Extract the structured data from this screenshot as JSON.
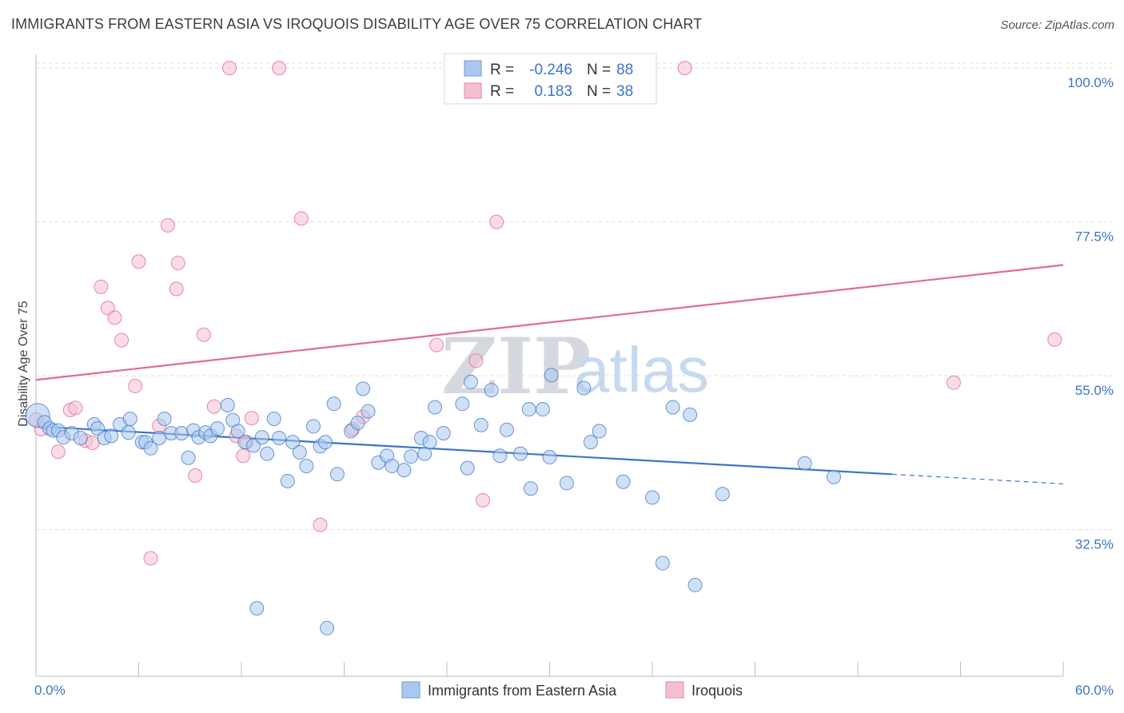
{
  "title": "IMMIGRANTS FROM EASTERN ASIA VS IROQUOIS DISABILITY AGE OVER 75 CORRELATION CHART",
  "source": "Source: ZipAtlas.com",
  "watermark": {
    "zip": "ZIP",
    "atlas": "atlas"
  },
  "colors": {
    "blue": "#3b74c9",
    "blue_fill": "#aac8ee",
    "pink": "#e26b93",
    "pink_fill": "#f5bfd2"
  },
  "legend": {
    "blue": {
      "r_label": "R =",
      "r_value": "-0.246",
      "n_label": "N =",
      "n_value": "88"
    },
    "pink": {
      "r_label": "R =",
      "r_value": "0.183",
      "n_label": "N =",
      "n_value": "38"
    }
  },
  "chart_data": {
    "type": "scatter",
    "title": "IMMIGRANTS FROM EASTERN ASIA VS IROQUOIS DISABILITY AGE OVER 75 CORRELATION CHART",
    "xlabel": "",
    "ylabel": "Disability Age Over 75",
    "xlim": [
      0,
      60
    ],
    "ylim": [
      12,
      102
    ],
    "x_tick_labels": [
      "0.0%",
      "60.0%"
    ],
    "y_ticks": [
      32.5,
      55.0,
      77.5,
      100.0
    ],
    "y_tick_labels": [
      "32.5%",
      "55.0%",
      "77.5%",
      "100.0%"
    ],
    "series": [
      {
        "name": "Immigrants from Eastern Asia",
        "color": "#3b74c9",
        "trend": {
          "x0": 0,
          "y0": 47.6,
          "x1": 50,
          "y1": 40.6,
          "dashed_to_x": 60,
          "dashed_to_y": 39.2
        },
        "points": [
          [
            0.1,
            49.2
          ],
          [
            0.5,
            48.2
          ],
          [
            0.8,
            47.3
          ],
          [
            1.0,
            47.0
          ],
          [
            1.3,
            47.0
          ],
          [
            1.6,
            46.0
          ],
          [
            2.1,
            46.6
          ],
          [
            2.6,
            45.9
          ],
          [
            3.4,
            47.9
          ],
          [
            3.6,
            47.3
          ],
          [
            4.0,
            45.9
          ],
          [
            4.4,
            46.2
          ],
          [
            4.9,
            47.9
          ],
          [
            5.4,
            46.7
          ],
          [
            5.5,
            48.7
          ],
          [
            6.2,
            45.3
          ],
          [
            6.4,
            45.3
          ],
          [
            6.7,
            44.4
          ],
          [
            7.2,
            45.9
          ],
          [
            7.5,
            48.7
          ],
          [
            7.9,
            46.6
          ],
          [
            8.5,
            46.6
          ],
          [
            8.9,
            43.0
          ],
          [
            9.2,
            47.0
          ],
          [
            9.5,
            46.0
          ],
          [
            9.9,
            46.7
          ],
          [
            10.2,
            46.2
          ],
          [
            10.6,
            47.3
          ],
          [
            11.2,
            50.7
          ],
          [
            11.5,
            48.5
          ],
          [
            11.8,
            46.9
          ],
          [
            12.2,
            45.3
          ],
          [
            12.7,
            44.8
          ],
          [
            13.2,
            46.0
          ],
          [
            13.5,
            43.6
          ],
          [
            13.9,
            48.7
          ],
          [
            14.2,
            45.9
          ],
          [
            14.7,
            39.6
          ],
          [
            15.0,
            45.3
          ],
          [
            15.4,
            43.8
          ],
          [
            15.8,
            41.8
          ],
          [
            16.2,
            47.6
          ],
          [
            16.6,
            44.7
          ],
          [
            16.9,
            45.3
          ],
          [
            17.4,
            50.9
          ],
          [
            17.6,
            40.6
          ],
          [
            18.4,
            46.9
          ],
          [
            18.8,
            48.1
          ],
          [
            19.1,
            53.1
          ],
          [
            19.4,
            49.8
          ],
          [
            20.0,
            42.3
          ],
          [
            20.5,
            43.3
          ],
          [
            20.8,
            41.8
          ],
          [
            21.5,
            41.2
          ],
          [
            21.9,
            43.2
          ],
          [
            22.5,
            45.9
          ],
          [
            22.7,
            43.6
          ],
          [
            23.0,
            45.3
          ],
          [
            23.3,
            50.4
          ],
          [
            23.8,
            46.6
          ],
          [
            24.9,
            50.9
          ],
          [
            25.2,
            41.5
          ],
          [
            25.4,
            54.1
          ],
          [
            26.0,
            47.8
          ],
          [
            26.6,
            52.9
          ],
          [
            27.1,
            43.3
          ],
          [
            27.5,
            47.1
          ],
          [
            28.3,
            43.6
          ],
          [
            28.8,
            50.1
          ],
          [
            28.9,
            38.5
          ],
          [
            29.6,
            50.1
          ],
          [
            30.0,
            43.1
          ],
          [
            30.1,
            55.1
          ],
          [
            31.0,
            39.3
          ],
          [
            32.0,
            53.2
          ],
          [
            32.4,
            45.3
          ],
          [
            32.9,
            46.9
          ],
          [
            34.3,
            39.5
          ],
          [
            36.0,
            37.2
          ],
          [
            36.6,
            27.6
          ],
          [
            37.2,
            50.4
          ],
          [
            38.2,
            49.3
          ],
          [
            38.5,
            24.4
          ],
          [
            40.1,
            37.7
          ],
          [
            44.9,
            42.2
          ],
          [
            46.6,
            40.2
          ],
          [
            17.0,
            18.1
          ],
          [
            12.9,
            21.0
          ]
        ]
      },
      {
        "name": "Iroquois",
        "color": "#e26b93",
        "trend": {
          "x0": 0,
          "y0": 54.4,
          "x1": 60,
          "y1": 71.2
        },
        "points": [
          [
            0.0,
            48.6
          ],
          [
            0.3,
            47.2
          ],
          [
            1.3,
            43.9
          ],
          [
            2.0,
            50.0
          ],
          [
            2.3,
            50.3
          ],
          [
            2.9,
            45.5
          ],
          [
            3.3,
            45.2
          ],
          [
            3.8,
            68.0
          ],
          [
            4.2,
            64.9
          ],
          [
            4.6,
            63.5
          ],
          [
            5.0,
            60.2
          ],
          [
            5.8,
            53.5
          ],
          [
            6.0,
            71.7
          ],
          [
            6.7,
            28.3
          ],
          [
            7.2,
            47.7
          ],
          [
            7.7,
            77.0
          ],
          [
            8.3,
            71.5
          ],
          [
            8.2,
            67.7
          ],
          [
            9.3,
            40.4
          ],
          [
            9.8,
            61.0
          ],
          [
            10.4,
            50.5
          ],
          [
            11.3,
            100.0
          ],
          [
            11.7,
            46.2
          ],
          [
            12.1,
            43.3
          ],
          [
            12.3,
            45.3
          ],
          [
            12.6,
            48.8
          ],
          [
            14.2,
            100.0
          ],
          [
            15.5,
            78.0
          ],
          [
            16.6,
            33.2
          ],
          [
            18.5,
            47.2
          ],
          [
            19.1,
            49.0
          ],
          [
            23.4,
            59.5
          ],
          [
            25.7,
            57.2
          ],
          [
            26.1,
            36.8
          ],
          [
            26.9,
            77.5
          ],
          [
            37.9,
            100.0
          ],
          [
            53.6,
            54.0
          ],
          [
            59.5,
            60.3
          ]
        ]
      }
    ]
  },
  "bottom_legend": {
    "blue_label": "Immigrants from Eastern Asia",
    "pink_label": "Iroquois"
  }
}
